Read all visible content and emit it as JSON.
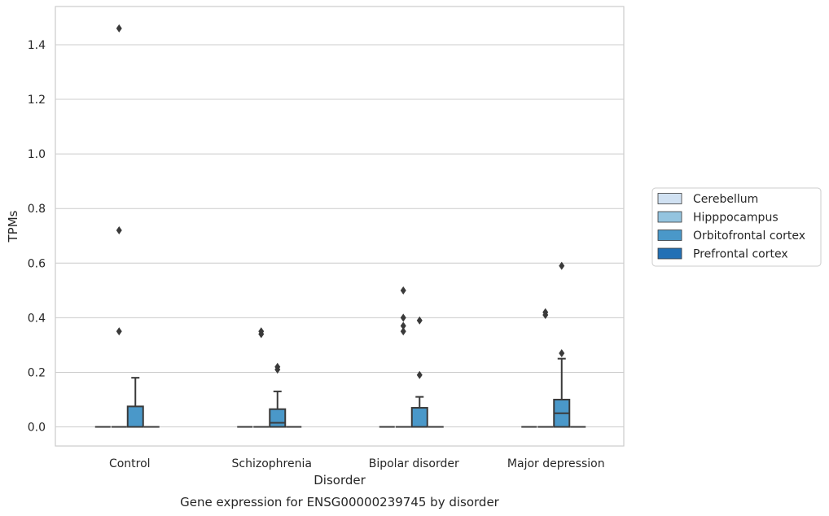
{
  "chart_data": {
    "type": "box",
    "title": "",
    "caption": "Gene expression for ENSG00000239745 by disorder",
    "xlabel": "Disorder",
    "ylabel": "TPMs",
    "ylim": [
      -0.07,
      1.54
    ],
    "yticks": [
      0.0,
      0.2,
      0.4,
      0.6,
      0.8,
      1.0,
      1.2,
      1.4
    ],
    "ytick_labels": [
      "0.0",
      "0.2",
      "0.4",
      "0.6",
      "0.8",
      "1.0",
      "1.2",
      "1.4"
    ],
    "grid": "horizontal",
    "legend_position": "right",
    "categories": [
      "Control",
      "Schizophrenia",
      "Bipolar disorder",
      "Major depression"
    ],
    "series": [
      {
        "name": "Cerebellum",
        "color": "#d0e1f2",
        "boxes": [
          {
            "category": "Control",
            "q1": 0,
            "median": 0,
            "q3": 0,
            "whisker_low": 0,
            "whisker_high": 0,
            "outliers": []
          },
          {
            "category": "Schizophrenia",
            "q1": 0,
            "median": 0,
            "q3": 0,
            "whisker_low": 0,
            "whisker_high": 0,
            "outliers": []
          },
          {
            "category": "Bipolar disorder",
            "q1": 0,
            "median": 0,
            "q3": 0,
            "whisker_low": 0,
            "whisker_high": 0,
            "outliers": []
          },
          {
            "category": "Major depression",
            "q1": 0,
            "median": 0,
            "q3": 0,
            "whisker_low": 0,
            "whisker_high": 0,
            "outliers": []
          }
        ]
      },
      {
        "name": "Hipppocampus",
        "color": "#94c4df",
        "boxes": [
          {
            "category": "Control",
            "q1": 0,
            "median": 0,
            "q3": 0,
            "whisker_low": 0,
            "whisker_high": 0,
            "outliers": [
              1.46,
              0.72,
              0.35
            ]
          },
          {
            "category": "Schizophrenia",
            "q1": 0,
            "median": 0,
            "q3": 0,
            "whisker_low": 0,
            "whisker_high": 0,
            "outliers": [
              0.35,
              0.34
            ]
          },
          {
            "category": "Bipolar disorder",
            "q1": 0,
            "median": 0,
            "q3": 0,
            "whisker_low": 0,
            "whisker_high": 0,
            "outliers": [
              0.5,
              0.4,
              0.35,
              0.37
            ]
          },
          {
            "category": "Major depression",
            "q1": 0,
            "median": 0,
            "q3": 0,
            "whisker_low": 0,
            "whisker_high": 0,
            "outliers": [
              0.42,
              0.41
            ]
          }
        ]
      },
      {
        "name": "Orbitofrontal cortex",
        "color": "#4a98c9",
        "boxes": [
          {
            "category": "Control",
            "q1": 0,
            "median": 0,
            "q3": 0.075,
            "whisker_low": 0,
            "whisker_high": 0.18,
            "outliers": []
          },
          {
            "category": "Schizophrenia",
            "q1": 0,
            "median": 0.015,
            "q3": 0.065,
            "whisker_low": 0,
            "whisker_high": 0.13,
            "outliers": [
              0.22,
              0.21
            ]
          },
          {
            "category": "Bipolar disorder",
            "q1": 0,
            "median": 0,
            "q3": 0.07,
            "whisker_low": 0,
            "whisker_high": 0.11,
            "outliers": [
              0.39,
              0.19
            ]
          },
          {
            "category": "Major depression",
            "q1": 0,
            "median": 0.05,
            "q3": 0.1,
            "whisker_low": 0,
            "whisker_high": 0.25,
            "outliers": [
              0.59,
              0.27
            ]
          }
        ]
      },
      {
        "name": "Prefrontal cortex",
        "color": "#2270b5",
        "boxes": [
          {
            "category": "Control",
            "q1": 0,
            "median": 0,
            "q3": 0,
            "whisker_low": 0,
            "whisker_high": 0,
            "outliers": []
          },
          {
            "category": "Schizophrenia",
            "q1": 0,
            "median": 0,
            "q3": 0,
            "whisker_low": 0,
            "whisker_high": 0,
            "outliers": []
          },
          {
            "category": "Bipolar disorder",
            "q1": 0,
            "median": 0,
            "q3": 0,
            "whisker_low": 0,
            "whisker_high": 0,
            "outliers": []
          },
          {
            "category": "Major depression",
            "q1": 0,
            "median": 0,
            "q3": 0,
            "whisker_low": 0,
            "whisker_high": 0,
            "outliers": []
          }
        ]
      }
    ]
  },
  "colors": {
    "grid": "#cccccc",
    "frame": "#cccccc",
    "line": "#3a3a3a",
    "text": "#262626",
    "background": "#ffffff"
  }
}
